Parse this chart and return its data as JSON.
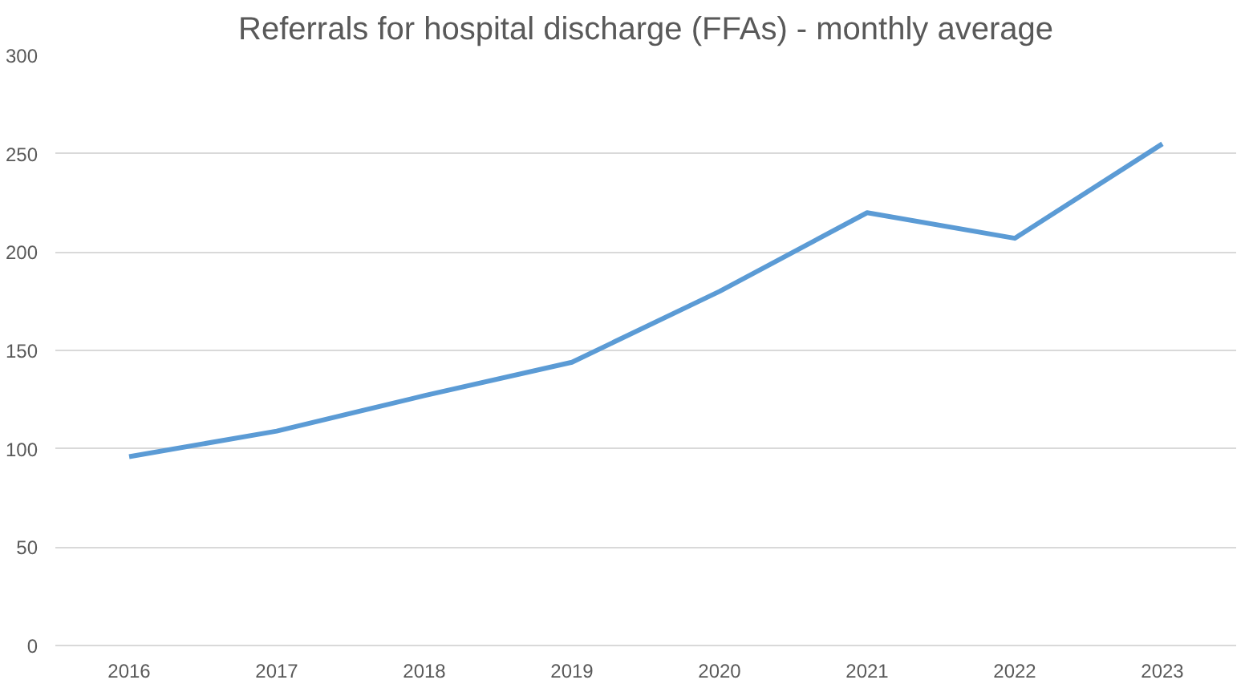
{
  "chart_data": {
    "type": "line",
    "title": "Referrals for hospital discharge (FFAs) - monthly average",
    "categories": [
      "2016",
      "2017",
      "2018",
      "2019",
      "2020",
      "2021",
      "2022",
      "2023"
    ],
    "series": [
      {
        "color": "#5b9bd5",
        "values": [
          96,
          109,
          127,
          144,
          180,
          220,
          207,
          255
        ]
      }
    ],
    "ylim": [
      0,
      300
    ],
    "yticks": [
      0,
      50,
      100,
      150,
      200,
      250,
      300
    ],
    "grid": "y",
    "marker": "none",
    "line_style": "solid"
  }
}
